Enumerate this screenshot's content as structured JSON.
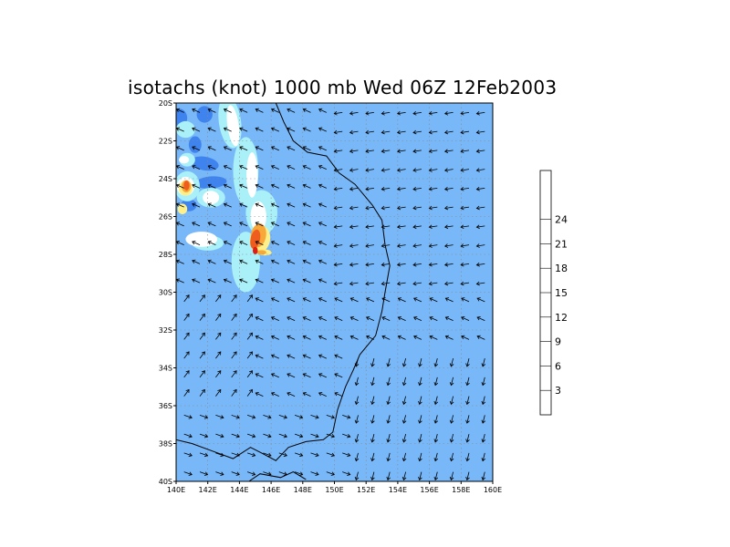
{
  "title": "isotachs (knot) 1000 mb Wed 06Z 12Feb2003",
  "chart_data": {
    "type": "heatmap",
    "variable": "isotachs (knot)",
    "level": "1000 mb",
    "time": "Wed 06Z 12Feb2003",
    "x_ticks": [
      "140E",
      "142E",
      "144E",
      "146E",
      "148E",
      "150E",
      "152E",
      "154E",
      "156E",
      "158E",
      "160E"
    ],
    "y_ticks": [
      "20S",
      "22S",
      "24S",
      "26S",
      "28S",
      "30S",
      "32S",
      "34S",
      "36S",
      "38S",
      "40S"
    ],
    "lon_range": [
      140,
      160
    ],
    "lat_range": [
      -40,
      -20
    ],
    "grid": true,
    "colorbar": {
      "levels": [
        3,
        6,
        9,
        12,
        15,
        18,
        21,
        24
      ],
      "colors": [
        "#1f5fe0",
        "#3f84ee",
        "#78b8f8",
        "#a9f0f8",
        "#ffffff",
        "#fdf08a",
        "#f8a838",
        "#ee5d1e",
        "#dc1f12",
        "#a40a0a"
      ],
      "placement": "right"
    },
    "fields": [
      {
        "level": 6,
        "blobs": [
          [
            0,
            0,
            25,
            72,
            0
          ],
          [
            0,
            20,
            6,
            6,
            0
          ],
          [
            20,
            42,
            5,
            22,
            0
          ]
        ]
      },
      {
        "level": 3,
        "blobs": [
          [
            9,
            3,
            2.5,
            2.2,
            0
          ],
          [
            1,
            4,
            2.5,
            2.5,
            0
          ],
          [
            6,
            11,
            2.0,
            2.2,
            0
          ],
          [
            9,
            16,
            4.5,
            1.8,
            10
          ],
          [
            11,
            21,
            5.0,
            1.6,
            -5
          ],
          [
            4,
            27,
            2.5,
            1.6,
            0
          ]
        ]
      },
      {
        "level": 9,
        "blobs": [
          [
            17,
            5,
            3.5,
            7,
            -8
          ],
          [
            22,
            18,
            4,
            9,
            0
          ],
          [
            3,
            7,
            3,
            2.2,
            0
          ],
          [
            3.5,
            15,
            2.5,
            1.8,
            0
          ],
          [
            3.5,
            22,
            4,
            4,
            0
          ],
          [
            11,
            25,
            4.5,
            2.6,
            0
          ],
          [
            22,
            42,
            4.5,
            8,
            0
          ],
          [
            27,
            29,
            5,
            6,
            0
          ],
          [
            10,
            37,
            5,
            2,
            0
          ]
        ]
      },
      {
        "level": 12,
        "blobs": [
          [
            18,
            6,
            1.8,
            5.5,
            -8
          ],
          [
            24,
            19,
            1.8,
            6,
            0
          ],
          [
            2.5,
            15,
            1.6,
            1.0,
            0
          ],
          [
            3,
            22,
            2.8,
            2.5,
            0
          ],
          [
            11,
            25,
            2.6,
            1.8,
            0
          ],
          [
            26,
            30,
            2.5,
            4,
            0
          ],
          [
            8,
            36,
            5,
            2,
            0
          ]
        ]
      },
      {
        "level": 15,
        "blobs": [
          [
            26.5,
            36,
            3.2,
            3.6,
            10
          ],
          [
            3,
            22.5,
            2.2,
            2.0,
            0
          ],
          [
            28,
            39.5,
            2.2,
            0.8,
            0
          ],
          [
            2,
            28,
            1.5,
            1.4,
            0
          ]
        ]
      },
      {
        "level": 18,
        "blobs": [
          [
            26,
            35,
            2.4,
            3.2,
            10
          ],
          [
            3.2,
            22,
            1.5,
            1.6,
            0
          ],
          [
            27,
            39.5,
            1.5,
            0.6,
            0
          ]
        ]
      },
      {
        "level": 21,
        "blobs": [
          [
            25,
            36,
            1.5,
            2.6,
            12
          ],
          [
            3.3,
            21.8,
            0.9,
            1.3,
            0
          ]
        ]
      },
      {
        "level": 24,
        "blobs": [
          [
            25,
            39,
            0.8,
            1.0,
            0
          ]
        ]
      }
    ],
    "land_mask_east_lon": [
      141,
      145,
      148,
      151,
      153
    ]
  }
}
